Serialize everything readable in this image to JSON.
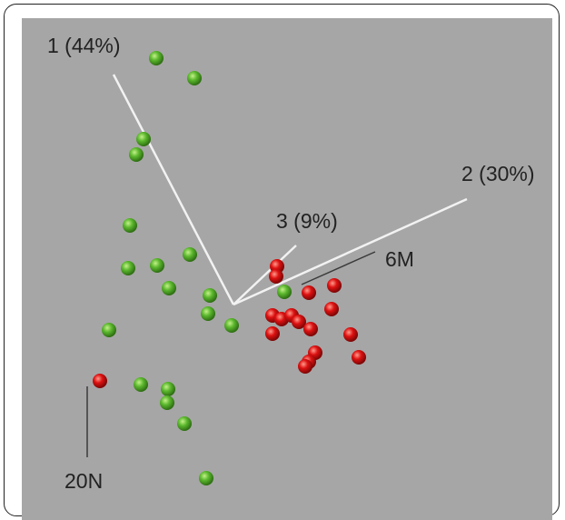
{
  "chart_data": {
    "type": "scatter",
    "projection": "3D PCA biplot",
    "background_color": "#a6a6a6",
    "axis_line_color": "#f2f2f2",
    "grid": false,
    "axes": [
      {
        "label": "1 (44%)"
      },
      {
        "label": "2 (30%)"
      },
      {
        "label": "3 (9%)"
      }
    ],
    "series": [
      {
        "color": "#5cb82e",
        "points": [
          [
            172,
            64
          ],
          [
            214,
            86
          ],
          [
            158,
            153
          ],
          [
            150,
            170
          ],
          [
            143,
            248
          ],
          [
            209,
            280
          ],
          [
            173,
            292
          ],
          [
            141,
            295
          ],
          [
            186,
            317
          ],
          [
            231,
            325
          ],
          [
            313,
            321
          ],
          [
            229,
            345
          ],
          [
            255,
            358
          ],
          [
            120,
            363
          ],
          [
            155,
            423
          ],
          [
            185,
            428
          ],
          [
            184,
            443
          ],
          [
            203,
            466
          ],
          [
            227,
            526
          ]
        ]
      },
      {
        "color": "#dd1111",
        "points": [
          [
            305,
            293
          ],
          [
            304,
            304
          ],
          [
            340,
            322
          ],
          [
            368,
            314
          ],
          [
            365,
            340
          ],
          [
            300,
            347
          ],
          [
            310,
            351
          ],
          [
            321,
            347
          ],
          [
            329,
            354
          ],
          [
            342,
            362
          ],
          [
            300,
            367
          ],
          [
            386,
            368
          ],
          [
            347,
            388
          ],
          [
            340,
            398
          ],
          [
            336,
            403
          ],
          [
            395,
            393
          ],
          [
            110,
            419
          ]
        ]
      }
    ],
    "annotations": [
      {
        "text": "6M"
      },
      {
        "text": "20N"
      }
    ]
  }
}
